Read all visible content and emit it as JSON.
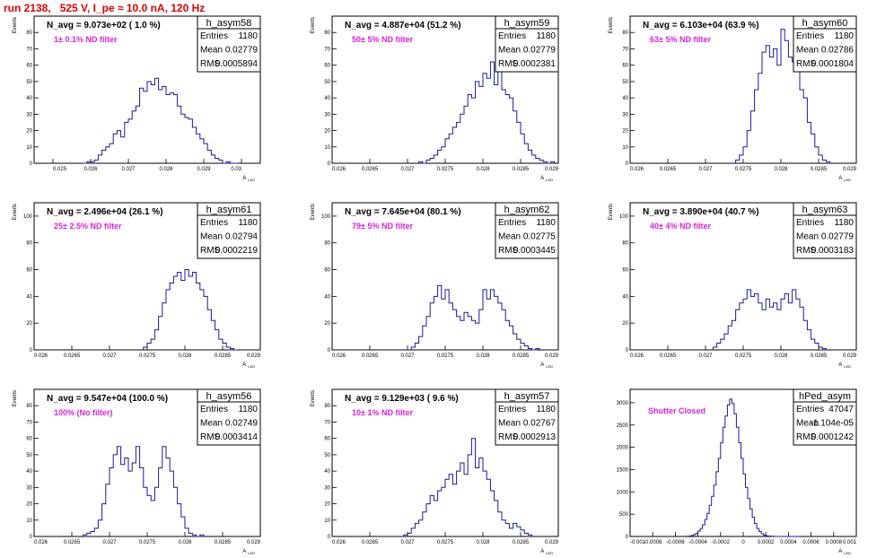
{
  "page_title": "run 2138,   525 V, I_pe ≈ 10.0 nA, 120 Hz",
  "colors": {
    "histogram": "#1a1aa6",
    "title": "#e00000",
    "filter_text": "#e020e0"
  },
  "stat_labels": {
    "entries": "Entries",
    "mean": "Mean",
    "rms": "RMS"
  },
  "chart_data": [
    {
      "type": "bar",
      "name": "h_asym58",
      "navg": "N_avg = 9.073e+02 ( 1.0 %)",
      "filter": "1± 0.1% ND filter",
      "stats": {
        "entries": "1180",
        "mean": "0.02779",
        "rms": "0.0005894"
      },
      "xlabel": "A_LED",
      "ylabel": "Events",
      "xlim": [
        0.0245,
        0.0305
      ],
      "ylim": [
        0,
        90
      ],
      "xticks": [
        "0.025",
        "0.026",
        "0.027",
        "0.028",
        "0.029",
        "0.03"
      ],
      "xtick_values": [
        0.025,
        0.026,
        0.027,
        0.028,
        0.029,
        0.03
      ],
      "yticks": [
        "0",
        "10",
        "20",
        "30",
        "40",
        "50",
        "60",
        "70",
        "80"
      ],
      "ytick_values": [
        0,
        10,
        20,
        30,
        40,
        50,
        60,
        70,
        80
      ],
      "x_start": 0.0258,
      "bin_width": 0.0001,
      "values": [
        0,
        1,
        1,
        2,
        5,
        8,
        10,
        12,
        18,
        20,
        16,
        25,
        27,
        32,
        35,
        46,
        44,
        50,
        48,
        52,
        45,
        47,
        42,
        43,
        42,
        35,
        30,
        28,
        27,
        22,
        18,
        15,
        12,
        8,
        5,
        3,
        2,
        0,
        1,
        0,
        0
      ]
    },
    {
      "type": "bar",
      "name": "h_asym59",
      "navg": "N_avg = 4.887e+04 (51.2 %)",
      "filter": "50± 5% ND filter",
      "stats": {
        "entries": "1180",
        "mean": "0.02779",
        "rms": "0.0002381"
      },
      "xlabel": "A_LED",
      "ylabel": "Events",
      "xlim": [
        0.026,
        0.029
      ],
      "ylim": [
        0,
        90
      ],
      "xticks": [
        "0.026",
        "0.0265",
        "0.027",
        "0.0275",
        "0.028",
        "0.0285",
        "0.029"
      ],
      "xtick_values": [
        0.026,
        0.0265,
        0.027,
        0.0275,
        0.028,
        0.0285,
        0.029
      ],
      "yticks": [
        "0",
        "10",
        "20",
        "30",
        "40",
        "50",
        "60",
        "70",
        "80"
      ],
      "ytick_values": [
        0,
        10,
        20,
        30,
        40,
        50,
        60,
        70,
        80
      ],
      "x_start": 0.02715,
      "bin_width": 5e-05,
      "values": [
        1,
        0,
        2,
        3,
        5,
        8,
        10,
        15,
        18,
        22,
        25,
        30,
        35,
        42,
        40,
        50,
        47,
        55,
        52,
        62,
        48,
        58,
        45,
        42,
        40,
        32,
        25,
        18,
        12,
        8,
        5,
        3,
        2,
        1,
        0,
        1
      ]
    },
    {
      "type": "bar",
      "name": "h_asym60",
      "navg": "N_avg = 6.103e+04 (63.9 %)",
      "filter": "63± 5% ND filter",
      "stats": {
        "entries": "1180",
        "mean": "0.02786",
        "rms": "0.0001804"
      },
      "xlabel": "A_LED",
      "ylabel": "Events",
      "xlim": [
        0.026,
        0.029
      ],
      "ylim": [
        0,
        90
      ],
      "xticks": [
        "0.026",
        "0.0265",
        "0.027",
        "0.0275",
        "0.028",
        "0.0285",
        "0.029"
      ],
      "xtick_values": [
        0.026,
        0.0265,
        0.027,
        0.0275,
        0.028,
        0.0285,
        0.029
      ],
      "yticks": [
        "0",
        "10",
        "20",
        "30",
        "40",
        "50",
        "60",
        "70",
        "80"
      ],
      "ytick_values": [
        0,
        10,
        20,
        30,
        40,
        50,
        60,
        70,
        80
      ],
      "x_start": 0.0274,
      "bin_width": 5e-05,
      "values": [
        2,
        5,
        10,
        20,
        32,
        45,
        55,
        68,
        72,
        65,
        70,
        60,
        82,
        75,
        65,
        62,
        58,
        45,
        40,
        25,
        18,
        10,
        5,
        2,
        1
      ]
    },
    {
      "type": "bar",
      "name": "h_asym61",
      "navg": "N_avg = 2.496e+04 (26.1 %)",
      "filter": "25± 2.5% ND filter",
      "stats": {
        "entries": "1180",
        "mean": "0.02794",
        "rms": "0.0002219"
      },
      "xlabel": "A_LED",
      "ylabel": "Events",
      "xlim": [
        0.026,
        0.029
      ],
      "ylim": [
        0,
        110
      ],
      "xticks": [
        "0.026",
        "0.0265",
        "0.027",
        "0.0275",
        "0.028",
        "0.0285",
        "0.029"
      ],
      "xtick_values": [
        0.026,
        0.0265,
        0.027,
        0.0275,
        0.028,
        0.0285,
        0.029
      ],
      "yticks": [
        "0",
        "20",
        "40",
        "60",
        "80",
        "100"
      ],
      "ytick_values": [
        0,
        20,
        40,
        60,
        80,
        100
      ],
      "x_start": 0.02745,
      "bin_width": 5e-05,
      "values": [
        2,
        5,
        8,
        15,
        25,
        35,
        45,
        50,
        55,
        58,
        52,
        60,
        55,
        58,
        50,
        45,
        40,
        30,
        22,
        15,
        8,
        5,
        2,
        1,
        0
      ]
    },
    {
      "type": "bar",
      "name": "h_asym62",
      "navg": "N_avg = 7.645e+04 (80.1 %)",
      "filter": "79± 5% ND filter",
      "stats": {
        "entries": "1180",
        "mean": "0.02775",
        "rms": "0.0003445"
      },
      "xlabel": "A_LED",
      "ylabel": "Events",
      "xlim": [
        0.026,
        0.029
      ],
      "ylim": [
        0,
        110
      ],
      "xticks": [
        "0.026",
        "0.0265",
        "0.027",
        "0.0275",
        "0.028",
        "0.0285",
        "0.029"
      ],
      "xtick_values": [
        0.026,
        0.0265,
        0.027,
        0.0275,
        0.028,
        0.0285,
        0.029
      ],
      "yticks": [
        "0",
        "20",
        "40",
        "60",
        "80",
        "100"
      ],
      "ytick_values": [
        0,
        20,
        40,
        60,
        80,
        100
      ],
      "x_start": 0.02705,
      "bin_width": 5e-05,
      "values": [
        2,
        5,
        10,
        18,
        25,
        35,
        40,
        48,
        38,
        45,
        35,
        30,
        25,
        22,
        28,
        25,
        22,
        20,
        30,
        45,
        38,
        45,
        40,
        35,
        30,
        22,
        18,
        12,
        8,
        5,
        3,
        1,
        0,
        1
      ]
    },
    {
      "type": "bar",
      "name": "h_asym63",
      "navg": "N_avg = 3.890e+04 (40.7 %)",
      "filter": "40± 4% ND filter",
      "stats": {
        "entries": "1180",
        "mean": "0.02779",
        "rms": "0.0003183"
      },
      "xlabel": "A_LED",
      "ylabel": "Events",
      "xlim": [
        0.026,
        0.029
      ],
      "ylim": [
        0,
        110
      ],
      "xticks": [
        "0.026",
        "0.0265",
        "0.027",
        "0.0275",
        "0.028",
        "0.0285",
        "0.029"
      ],
      "xtick_values": [
        0.026,
        0.0265,
        0.027,
        0.0275,
        0.028,
        0.0285,
        0.029
      ],
      "yticks": [
        "0",
        "20",
        "40",
        "60",
        "80",
        "100"
      ],
      "ytick_values": [
        0,
        20,
        40,
        60,
        80,
        100
      ],
      "x_start": 0.0271,
      "bin_width": 5e-05,
      "values": [
        2,
        5,
        8,
        12,
        18,
        22,
        30,
        35,
        38,
        45,
        40,
        42,
        35,
        30,
        38,
        32,
        35,
        30,
        38,
        42,
        35,
        45,
        38,
        32,
        22,
        15,
        8,
        5,
        2,
        1
      ]
    },
    {
      "type": "bar",
      "name": "h_asym56",
      "navg": "N_avg = 9.547e+04 (100.0 %)",
      "filter": "100% (No filter)",
      "stats": {
        "entries": "1180",
        "mean": "0.02749",
        "rms": "0.0003414"
      },
      "xlabel": "A_LED",
      "ylabel": "Events",
      "xlim": [
        0.026,
        0.029
      ],
      "ylim": [
        0,
        90
      ],
      "xticks": [
        "0.026",
        "0.0265",
        "0.027",
        "0.0275",
        "0.028",
        "0.0285",
        "0.029"
      ],
      "xtick_values": [
        0.026,
        0.0265,
        0.027,
        0.0275,
        0.028,
        0.0285,
        0.029
      ],
      "yticks": [
        "0",
        "10",
        "20",
        "30",
        "40",
        "50",
        "60",
        "70",
        "80"
      ],
      "ytick_values": [
        0,
        10,
        20,
        30,
        40,
        50,
        60,
        70,
        80
      ],
      "x_start": 0.02665,
      "bin_width": 5e-05,
      "values": [
        1,
        2,
        3,
        5,
        10,
        20,
        32,
        42,
        50,
        55,
        44,
        48,
        40,
        45,
        55,
        42,
        30,
        25,
        22,
        30,
        42,
        55,
        48,
        40,
        30,
        20,
        12,
        5,
        2,
        1,
        0,
        1
      ]
    },
    {
      "type": "bar",
      "name": "h_asym57",
      "navg": "N_avg = 9.129e+03 ( 9.6 %)",
      "filter": "10± 1% ND filter",
      "stats": {
        "entries": "1180",
        "mean": "0.02767",
        "rms": "0.0002913"
      },
      "xlabel": "A_LED",
      "ylabel": "Events",
      "xlim": [
        0.026,
        0.029
      ],
      "ylim": [
        0,
        90
      ],
      "xticks": [
        "0.026",
        "0.0265",
        "0.027",
        "0.0275",
        "0.028",
        "0.0285",
        "0.029"
      ],
      "xtick_values": [
        0.026,
        0.0265,
        0.027,
        0.0275,
        0.028,
        0.0285,
        0.029
      ],
      "yticks": [
        "0",
        "10",
        "20",
        "30",
        "40",
        "50",
        "60",
        "70",
        "80"
      ],
      "ytick_values": [
        0,
        10,
        20,
        30,
        40,
        50,
        60,
        70,
        80
      ],
      "x_start": 0.02695,
      "bin_width": 5e-05,
      "values": [
        1,
        2,
        5,
        8,
        10,
        15,
        20,
        25,
        22,
        28,
        30,
        35,
        38,
        32,
        40,
        45,
        38,
        50,
        60,
        42,
        48,
        40,
        35,
        28,
        22,
        15,
        10,
        8,
        5,
        8,
        6,
        4,
        2,
        1
      ]
    },
    {
      "type": "bar",
      "name": "hPed_asym",
      "navg": "",
      "filter": "Shutter Closed",
      "stats": {
        "entries": "47047",
        "mean": "-1.104e-05",
        "rms": "0.0001242"
      },
      "xlabel": "A_LED",
      "ylabel": "",
      "xlim": [
        -0.001,
        0.001
      ],
      "ylim": [
        0,
        3300
      ],
      "xticks": [
        "-0.001",
        "-0.0008",
        "-0.0006",
        "-0.0004",
        "-0.0002",
        "0",
        "0.0002",
        "0.0004",
        "0.0006",
        "0.0008",
        "0.001"
      ],
      "xtick_values": [
        -0.001,
        -0.0008,
        -0.0006,
        -0.0004,
        -0.0002,
        0,
        0.0002,
        0.0004,
        0.0006,
        0.0008,
        0.001
      ],
      "yticks": [
        "0",
        "500",
        "1000",
        "1500",
        "2000",
        "2500",
        "3000"
      ],
      "ytick_values": [
        0,
        500,
        1000,
        1500,
        2000,
        2500,
        3000
      ],
      "x_start": -0.0005,
      "bin_width": 2e-05,
      "values": [
        5,
        10,
        20,
        40,
        70,
        120,
        180,
        260,
        380,
        520,
        700,
        900,
        1150,
        1450,
        1750,
        2100,
        2450,
        2700,
        2950,
        3080,
        2980,
        2750,
        2450,
        2100,
        1750,
        1400,
        1100,
        850,
        620,
        430,
        290,
        180,
        110,
        60,
        30,
        15,
        8,
        4,
        2,
        1,
        1,
        0,
        0,
        0,
        0,
        0,
        0,
        0,
        0,
        0
      ]
    }
  ]
}
